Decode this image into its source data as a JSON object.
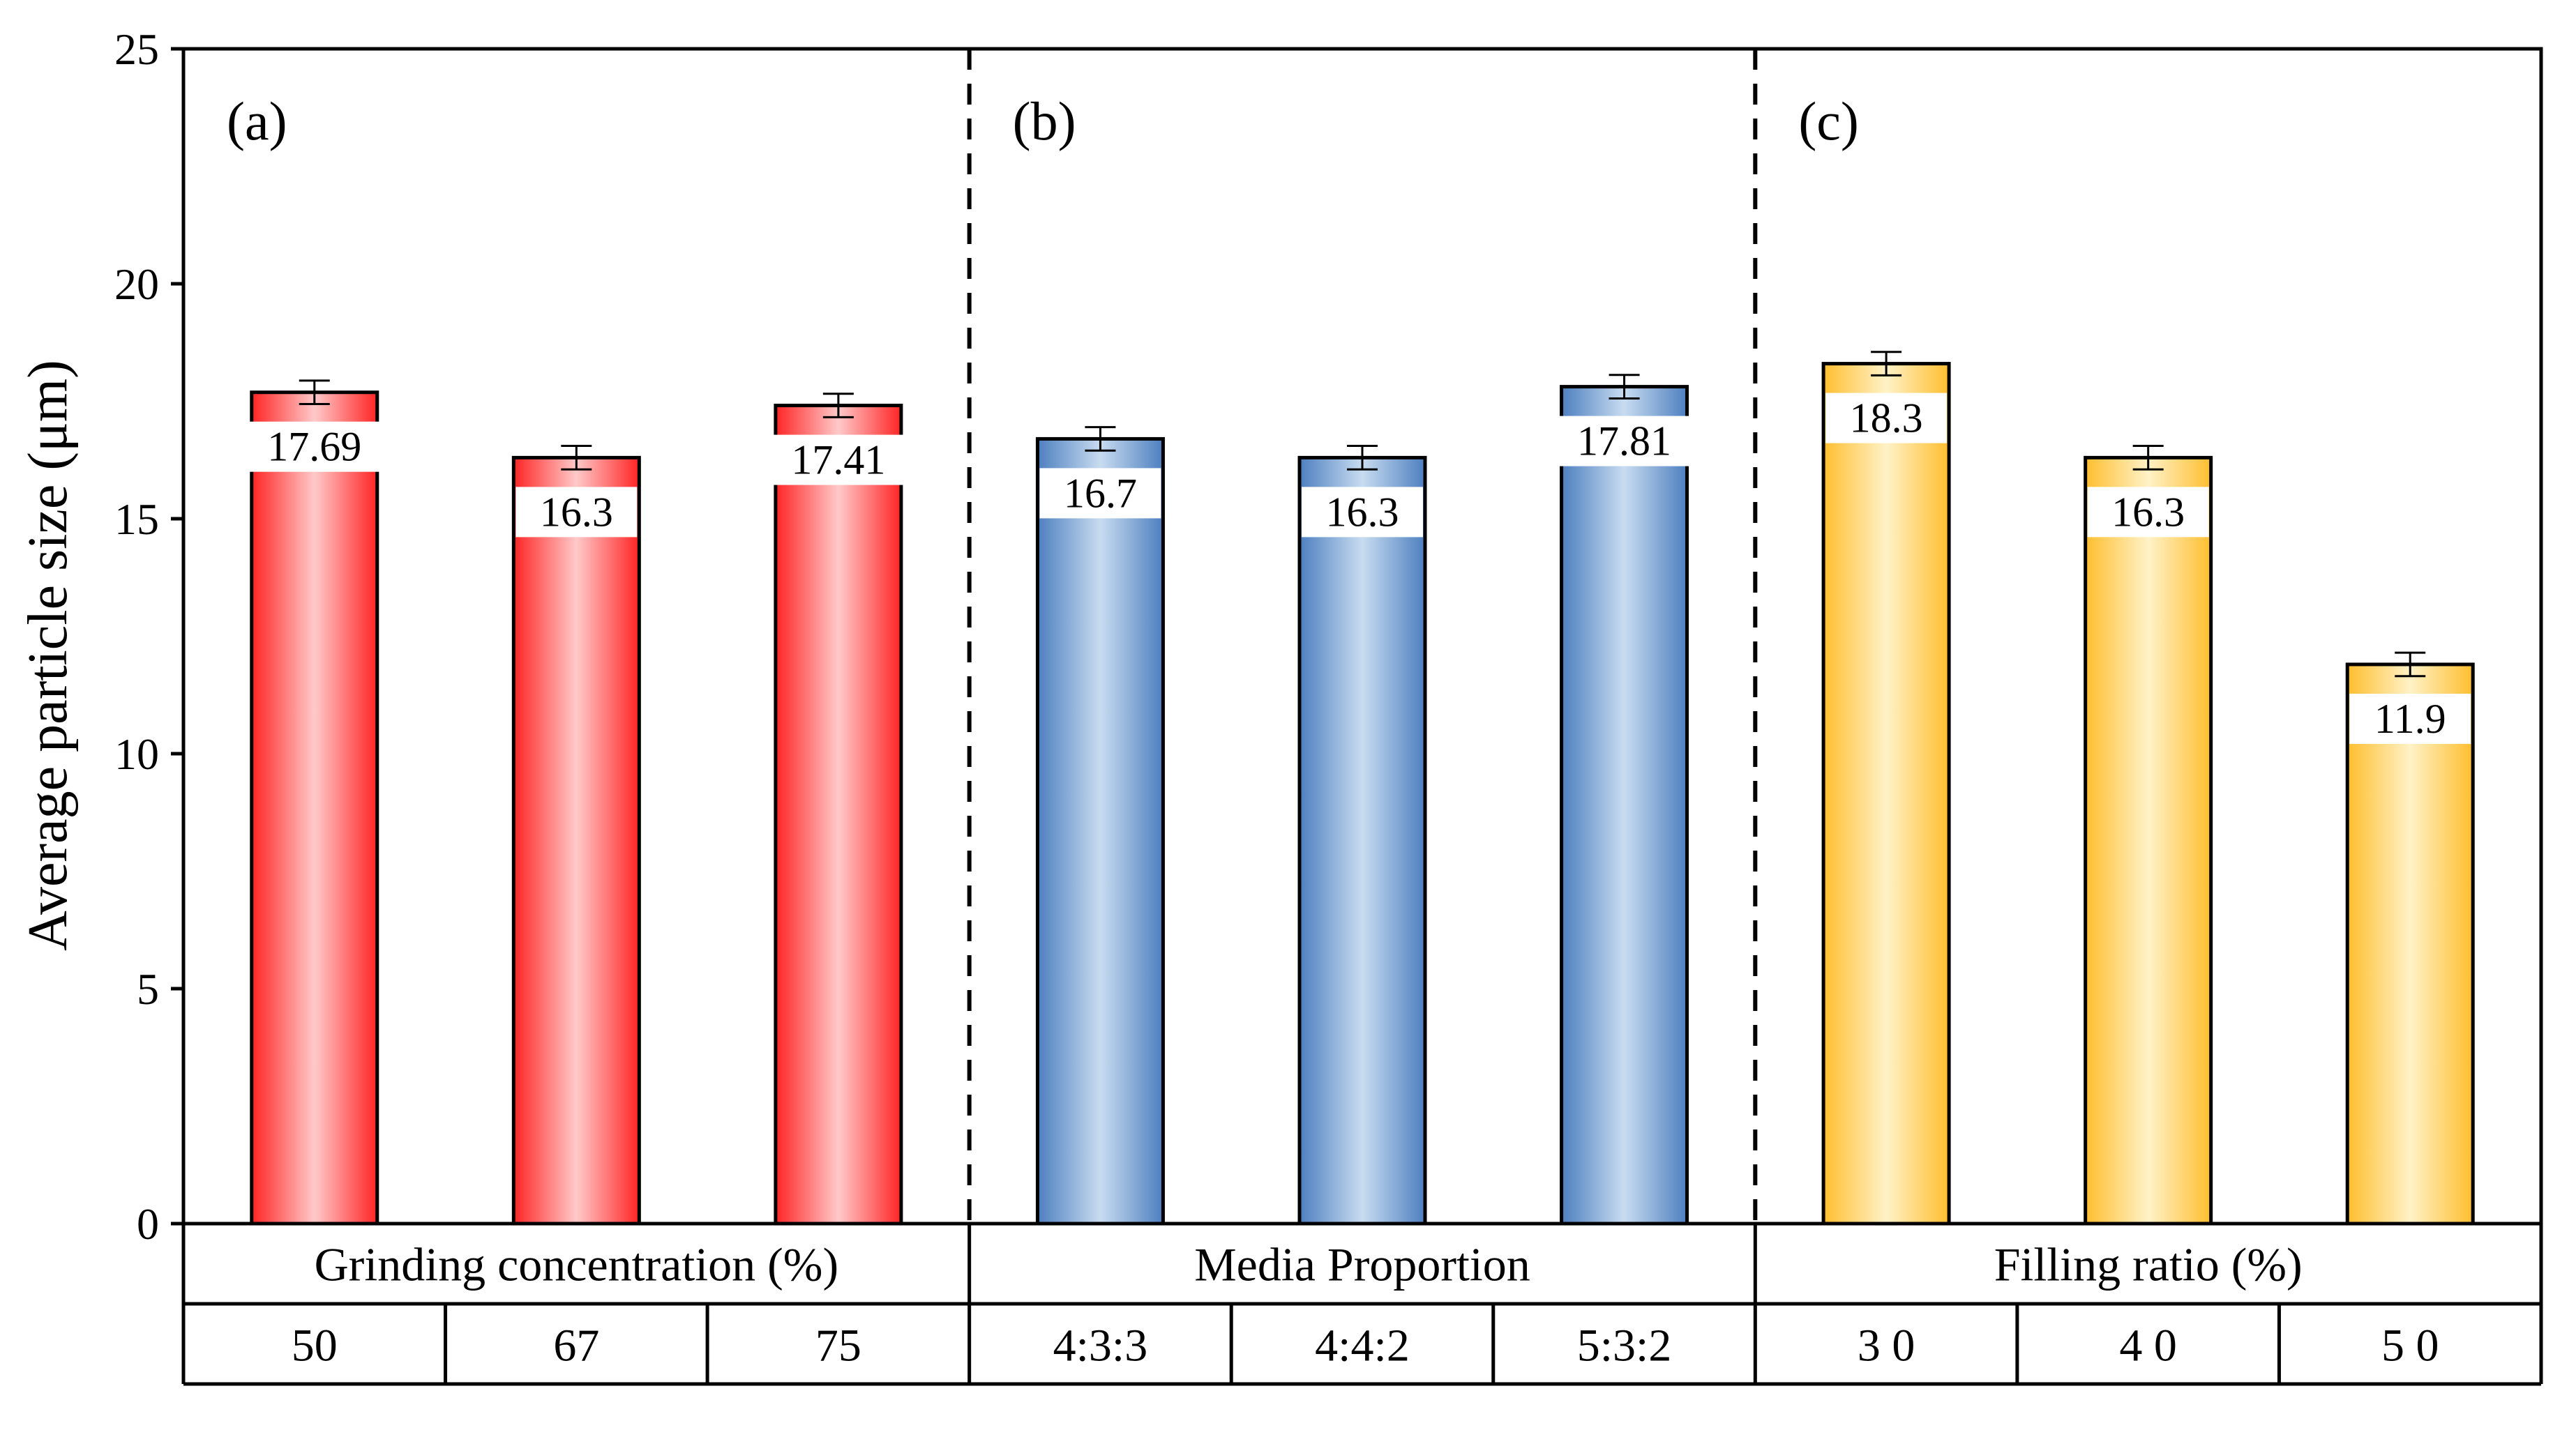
{
  "chart_data": {
    "type": "bar",
    "ylabel": "Average particle size (μm)",
    "ylim": [
      0,
      25
    ],
    "yticks": [
      0,
      5,
      10,
      15,
      20,
      25
    ],
    "error_bar": 0.25,
    "panels": [
      {
        "label": "(a)",
        "group_title": "Grinding concentration (%)",
        "categories": [
          "50",
          "67",
          "75"
        ],
        "values": [
          17.69,
          16.3,
          17.41
        ],
        "value_labels": [
          "17.69",
          "16.3",
          "17.41"
        ],
        "color_dark": "#ff2424",
        "color_light": "#ffc9c9"
      },
      {
        "label": "(b)",
        "group_title": "Media Proportion",
        "categories": [
          "4:3:3",
          "4:4:2",
          "5:3:2"
        ],
        "values": [
          16.7,
          16.3,
          17.81
        ],
        "value_labels": [
          "16.7",
          "16.3",
          "17.81"
        ],
        "color_dark": "#4d7fc0",
        "color_light": "#c8dcf0"
      },
      {
        "label": "(c)",
        "group_title": "Filling ratio (%)",
        "categories": [
          "3 0",
          "4 0",
          "5 0"
        ],
        "values": [
          18.3,
          16.3,
          11.9
        ],
        "value_labels": [
          "18.3",
          "16.3",
          "11.9"
        ],
        "color_dark": "#ffbe2e",
        "color_light": "#fff2c7"
      }
    ]
  }
}
